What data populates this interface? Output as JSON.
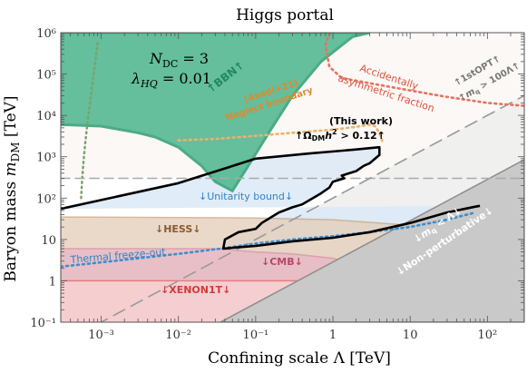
{
  "chart_data": {
    "type": "area",
    "title": "Higgs portal",
    "xlabel": "Confining scale Λ [TeV]",
    "ylabel": "Baryon mass m_DM [TeV]",
    "x_scale": "log",
    "y_scale": "log",
    "xlim": [
      0.0003,
      300
    ],
    "ylim": [
      0.1,
      1000000
    ],
    "x_ticks": [
      0.001,
      0.01,
      0.1,
      1,
      10,
      100
    ],
    "x_tick_labels": [
      "10⁻³",
      "10⁻²",
      "10⁻¹",
      "1",
      "10",
      "10²"
    ],
    "y_ticks": [
      0.1,
      1,
      10,
      100,
      1000,
      10000,
      100000,
      1000000
    ],
    "y_tick_labels": [
      "10⁻¹",
      "1",
      "10",
      "10²",
      "10³",
      "10⁴",
      "10⁵",
      "10⁶"
    ],
    "parameters": [
      "N_DC = 3",
      "λ_HQ = 0.01"
    ],
    "annotations": {
      "bbn": "↑BBN↑",
      "asym_1": "Accidentally",
      "asym_2": "asymmetric fraction",
      "asadi_1": "(Asadi+21)",
      "asadi_2": "Neglect boundary",
      "opt_1": "↑1stOPT↑",
      "opt_2": "↑m_q > 100Λ↑",
      "this_work": "(This work)",
      "relic": "↑Ω_DM h² > 0.12↑",
      "unitarity": "↓Unitarity bound↓",
      "hess": "↓HESS↓",
      "thermal": "Thermal freeze-out",
      "cmb": "↓CMB↓",
      "xenon": "↓XENON1T↓",
      "mq_lambda": "↓m_q < Λ↓",
      "nonpert": "↓Non-perturbative↓"
    },
    "series": [
      {
        "name": "BBN",
        "kind": "region-above",
        "color": "#3aaa83",
        "x": [
          0.0003,
          0.001,
          0.0018,
          0.003,
          0.005,
          0.01,
          0.02,
          0.03,
          0.05,
          0.08,
          0.15,
          0.3,
          0.7,
          1.8,
          3
        ],
        "y": [
          6000,
          5500,
          4500,
          3800,
          3000,
          1700,
          600,
          250,
          150,
          600,
          4000,
          30000,
          200000,
          800000,
          1000000
        ]
      },
      {
        "name": "Asadi+21 neglect boundary",
        "kind": "dotted",
        "color": "#f0b06a",
        "x": [
          0.01,
          0.03,
          0.1,
          0.3,
          1,
          2,
          3,
          3.5,
          4,
          4.5
        ],
        "y": [
          2500,
          2700,
          3200,
          3800,
          4500,
          5300,
          6000,
          5500,
          3800,
          2000
        ]
      },
      {
        "name": "Accidentally asymmetric fraction",
        "kind": "dotted",
        "color": "#e6735f",
        "x": [
          0.9,
          0.8,
          0.9,
          1.3,
          3,
          10,
          30,
          100,
          300
        ],
        "y": [
          1000000,
          500000,
          150000,
          80000,
          60000,
          40000,
          28000,
          20000,
          17000
        ]
      },
      {
        "name": "1stOPT / m_q > 100Λ",
        "kind": "dashed",
        "color": "#999999",
        "x": [
          0.0003,
          300
        ],
        "y": [
          0.03,
          30000
        ]
      },
      {
        "name": "Unitarity bound",
        "kind": "dashed",
        "color": "#aaaaaa",
        "x": [
          0.0003,
          300
        ],
        "y": [
          300,
          300
        ]
      },
      {
        "name": "m_q < Λ (non-perturbative)",
        "kind": "region-below",
        "color": "#c7c7c7",
        "x": [
          0.035,
          300
        ],
        "y": [
          0.1,
          850
        ]
      },
      {
        "name": "HESS",
        "kind": "region-below",
        "color": "#c9a280",
        "x": [
          0.0003,
          0.1,
          1,
          10,
          30,
          60,
          100,
          120
        ],
        "y": [
          35,
          33,
          30,
          22,
          15,
          10,
          6,
          5
        ]
      },
      {
        "name": "CMB",
        "kind": "region-below",
        "color": "#d98aa3",
        "x": [
          0.0003,
          0.01,
          0.03,
          0.1,
          0.3,
          1,
          2,
          4
        ],
        "y": [
          6,
          6,
          6,
          5,
          4.5,
          3.5,
          2.5,
          1.5
        ]
      },
      {
        "name": "XENON1T",
        "kind": "region-below",
        "color": "#f3bebe",
        "x": [
          0.0003,
          300
        ],
        "y": [
          1,
          1
        ]
      },
      {
        "name": "Thermal freeze-out",
        "kind": "dotted",
        "color": "#3c8fd0",
        "x": [
          0.0003,
          0.001,
          0.003,
          0.01,
          0.035,
          0.1,
          0.3,
          1,
          3,
          10,
          30,
          70
        ],
        "y": [
          2.2,
          2.8,
          3.5,
          4.5,
          6,
          8,
          10,
          12,
          15,
          20,
          30,
          45
        ]
      },
      {
        "name": "Ω_DM h² = 0.12 (this work)",
        "kind": "solid",
        "color": "#000000",
        "x": [
          0.0003,
          0.01,
          0.1,
          0.5,
          2,
          4,
          4,
          3,
          2.5,
          2,
          1.3,
          1.4,
          1.0,
          0.9,
          0.7,
          0.4,
          0.3,
          0.2,
          0.12,
          0.1,
          0.06,
          0.04,
          0.038,
          0.06,
          0.1,
          0.3,
          1,
          3,
          10,
          30,
          70,
          80
        ],
        "y": [
          55,
          230,
          900,
          1200,
          1500,
          1700,
          1100,
          700,
          600,
          450,
          350,
          300,
          250,
          180,
          130,
          70,
          60,
          45,
          25,
          18,
          15,
          10,
          6,
          6.5,
          7,
          9,
          11,
          15,
          25,
          45,
          62,
          65
        ]
      }
    ]
  }
}
